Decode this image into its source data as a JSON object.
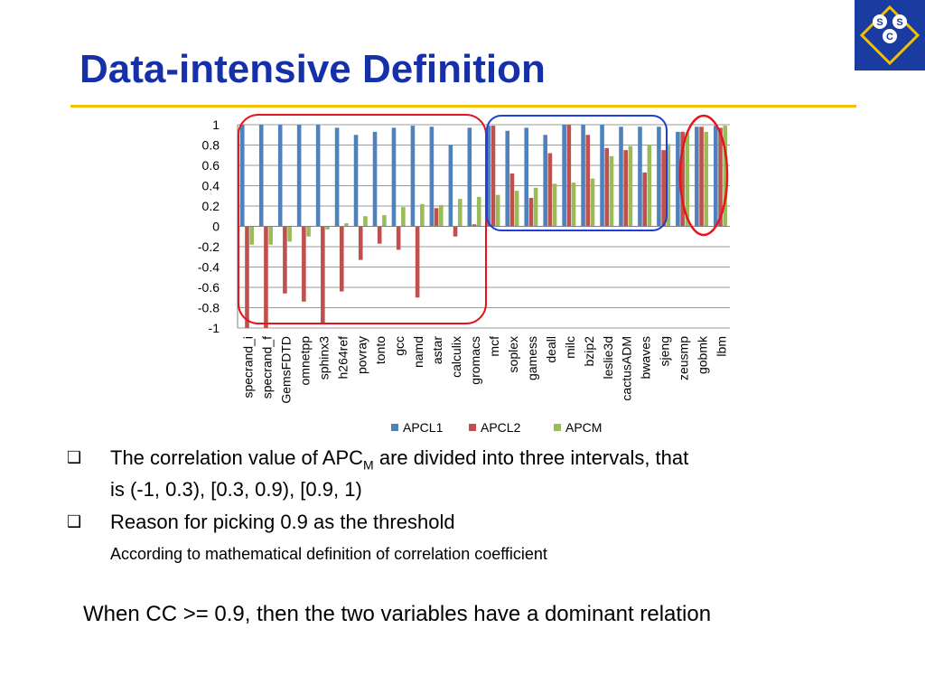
{
  "slide": {
    "title": "Data-intensive Definition",
    "bullets": [
      {
        "marker": "❑",
        "text_before": "The correlation value of APC",
        "subscript": "M",
        "text_after": " are divided into three intervals, that",
        "line2": "is (-1, 0.3), [0.3, 0.9), [0.9, 1)"
      },
      {
        "marker": "❑",
        "text": "Reason for picking 0.9 as the threshold"
      }
    ],
    "sub_bullet": "According to mathematical definition of correlation coefficient",
    "note": "When CC >= 0.9, then the two variables have a dominant relation",
    "logo_letters": [
      "S",
      "S",
      "C"
    ]
  },
  "colors": {
    "title": "#1530a8",
    "rule": "#f2c200",
    "apcl1": "#4f81bd",
    "apcl2": "#c0504d",
    "apcm": "#9bbb59",
    "red_region": "#e8141c",
    "blue_region": "#1f3fd6",
    "logo_bg": "#1a3ca0",
    "logo_accent": "#f2c200"
  },
  "chart_data": {
    "type": "bar",
    "categories": [
      "specrand_i",
      "specrand_f",
      "GemsFDTD",
      "omnetpp",
      "sphinx3",
      "h264ref",
      "povray",
      "tonto",
      "gcc",
      "namd",
      "astar",
      "calculix",
      "gromacs",
      "mcf",
      "soplex",
      "gamess",
      "deall",
      "milc",
      "bzip2",
      "leslie3d",
      "cactusADM",
      "bwaves",
      "sjeng",
      "zeusmp",
      "gobmk",
      "lbm"
    ],
    "series": [
      {
        "name": "APCL1",
        "values": [
          1.0,
          1.0,
          1.0,
          1.0,
          1.0,
          0.97,
          0.9,
          0.93,
          0.97,
          0.99,
          0.98,
          0.8,
          0.97,
          0.99,
          0.94,
          0.97,
          0.9,
          1.0,
          1.0,
          1.0,
          0.98,
          0.98,
          0.98,
          0.93,
          0.98,
          0.99
        ]
      },
      {
        "name": "APCL2",
        "values": [
          -1.0,
          -1.0,
          -0.66,
          -0.74,
          -0.95,
          -0.64,
          -0.33,
          -0.17,
          -0.23,
          -0.7,
          0.18,
          -0.1,
          0.02,
          0.99,
          0.52,
          0.28,
          0.72,
          1.0,
          0.9,
          0.77,
          0.75,
          0.53,
          0.75,
          0.93,
          0.98,
          0.97
        ]
      },
      {
        "name": "APCM",
        "values": [
          -0.18,
          -0.18,
          -0.15,
          -0.1,
          -0.03,
          0.03,
          0.1,
          0.11,
          0.19,
          0.22,
          0.21,
          0.27,
          0.29,
          0.31,
          0.35,
          0.38,
          0.42,
          0.43,
          0.47,
          0.69,
          0.79,
          0.8,
          0.81,
          0.92,
          0.93,
          0.99
        ]
      }
    ],
    "yticks": [
      "1",
      "0.8",
      "0.6",
      "0.4",
      "0.2",
      "0",
      "-0.2",
      "-0.4",
      "-0.6",
      "-0.8",
      "-1"
    ],
    "ylim": [
      -1,
      1
    ],
    "grid": true,
    "legend": "bottom"
  }
}
